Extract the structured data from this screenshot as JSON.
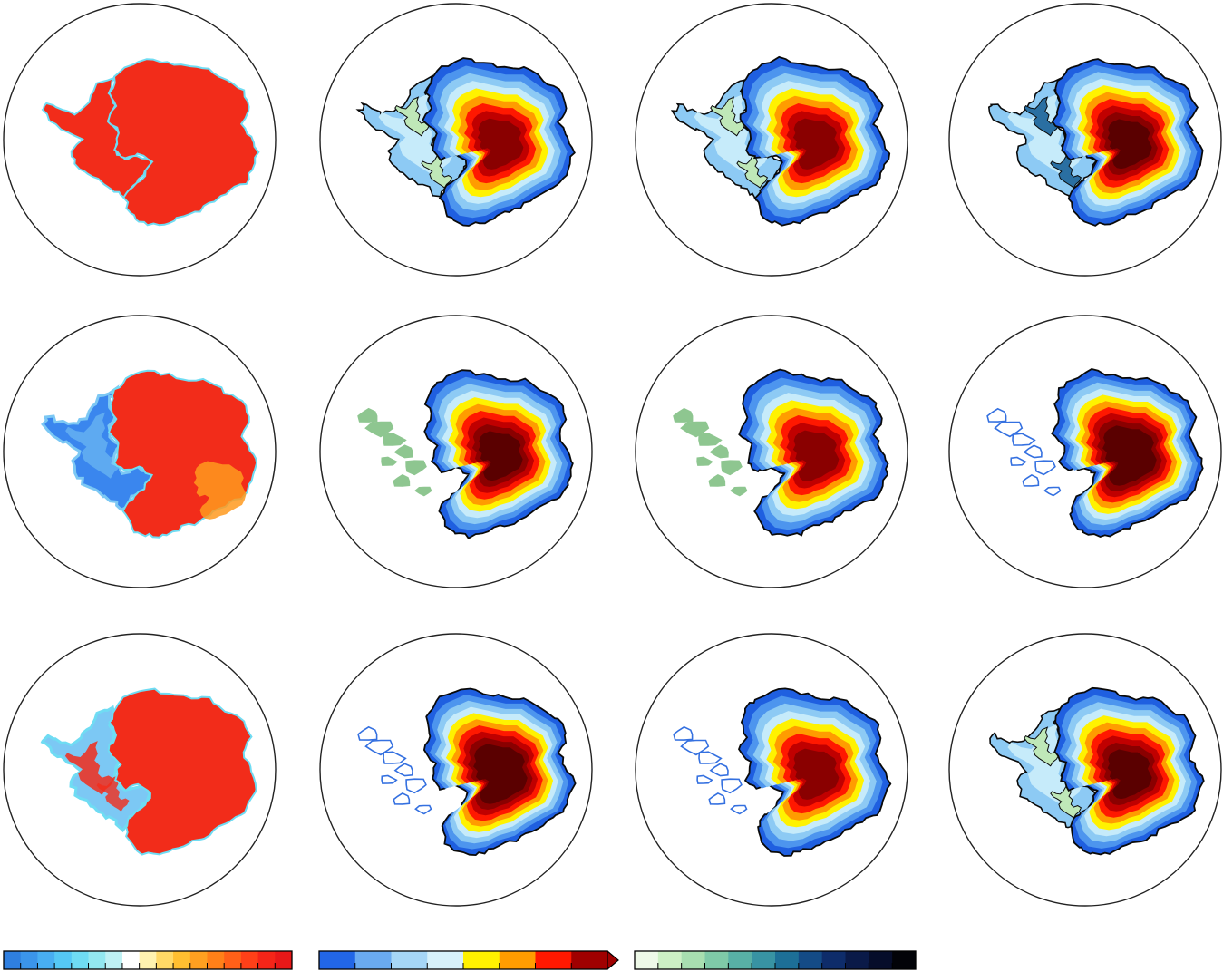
{
  "figure": {
    "grid": {
      "rows": 3,
      "columns": 4
    },
    "panels": [
      {
        "row": 1,
        "col": 1,
        "style": "gridded-mask",
        "region": "west-connected",
        "palette": "diverging"
      },
      {
        "row": 1,
        "col": 2,
        "style": "contour",
        "region": "west-connected",
        "palette": "thickness",
        "overlay": "shelves-green",
        "core_levels": 5
      },
      {
        "row": 1,
        "col": 3,
        "style": "contour",
        "region": "west-connected",
        "palette": "thickness",
        "overlay": "shelves-green",
        "core_levels": 5
      },
      {
        "row": 1,
        "col": 4,
        "style": "contour",
        "region": "west-connected",
        "palette": "thickness",
        "overlay": "shelves-dark",
        "core_levels": 6
      },
      {
        "row": 2,
        "col": 1,
        "style": "gridded-mask",
        "region": "west-blue",
        "palette": "diverging"
      },
      {
        "row": 2,
        "col": 2,
        "style": "contour",
        "region": "east-only-islands",
        "palette": "thickness",
        "overlay": "islands-green",
        "core_levels": 6
      },
      {
        "row": 2,
        "col": 3,
        "style": "contour",
        "region": "east-only-islands",
        "palette": "thickness",
        "overlay": "islands-green",
        "core_levels": 5
      },
      {
        "row": 2,
        "col": 4,
        "style": "contour",
        "region": "east-only-islands",
        "palette": "thickness",
        "overlay": "islands-blue",
        "core_levels": 7
      },
      {
        "row": 3,
        "col": 1,
        "style": "gridded-mask",
        "region": "west-mixed",
        "palette": "diverging"
      },
      {
        "row": 3,
        "col": 2,
        "style": "contour",
        "region": "east-only-islands",
        "palette": "thickness",
        "overlay": "islands-blue",
        "core_levels": 7
      },
      {
        "row": 3,
        "col": 3,
        "style": "contour",
        "region": "east-only-islands",
        "palette": "thickness",
        "overlay": "islands-blue",
        "core_levels": 5
      },
      {
        "row": 3,
        "col": 4,
        "style": "contour",
        "region": "west-connected",
        "palette": "thickness",
        "overlay": "shelves-green",
        "core_levels": 6
      }
    ],
    "colorbars": [
      {
        "id": "diverging",
        "extend": "none",
        "colors": [
          "#2f7fe0",
          "#3b95ea",
          "#48aef2",
          "#55c8f5",
          "#6fdcf3",
          "#93e8f0",
          "#bff1f4",
          "#ffffff",
          "#fff3b0",
          "#ffd966",
          "#ffbf30",
          "#ffa020",
          "#ff8018",
          "#ff6018",
          "#ff4018",
          "#f52518",
          "#e81818"
        ]
      },
      {
        "id": "thickness",
        "extend": "max",
        "colors": [
          "#2266e6",
          "#6aaaf0",
          "#a6d6f6",
          "#d7f1fa",
          "#fff200",
          "#ff9c00",
          "#ff1800",
          "#a00000"
        ]
      },
      {
        "id": "shelves",
        "extend": "none",
        "colors": [
          "#eef9e8",
          "#cdf0c4",
          "#a8dfb0",
          "#7fcaa8",
          "#58b0a6",
          "#3893a3",
          "#1d6f97",
          "#144b86",
          "#0e2c6a",
          "#0a1a48",
          "#060d2a",
          "#020308"
        ]
      }
    ],
    "palettes": {
      "diverging_map": {
        "land": "#f22c1a",
        "west_blue": "#3a86ee",
        "west_light": "#7cc8f4",
        "coast_cyan": "#6fdcf3",
        "coast_warm": "#ff9a1e"
      },
      "thickness_map": {
        "levels": [
          "#1f5fe0",
          "#4d95ee",
          "#8dcaf4",
          "#c6ebfa",
          "#fff200",
          "#ff9c00",
          "#ff1800",
          "#c00000",
          "#8a0000",
          "#5a0000"
        ],
        "shelf_green": "#bfe8b8",
        "shelf_dark": "#2a6fa2",
        "island_green": "#8ec690",
        "island_blue": "#3470e0",
        "outline": "#0a0a0a"
      }
    }
  }
}
